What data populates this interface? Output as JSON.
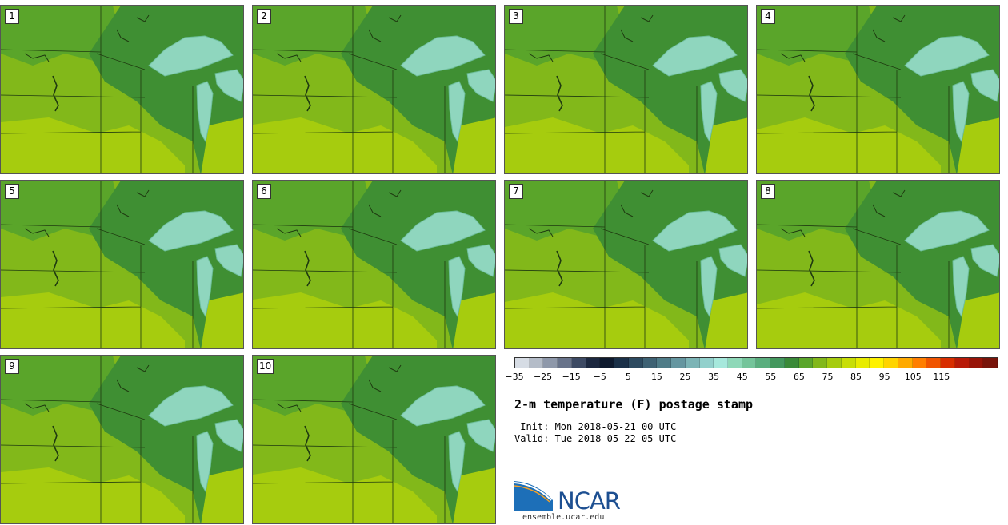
{
  "panels": [
    {
      "label": "1"
    },
    {
      "label": "2"
    },
    {
      "label": "3"
    },
    {
      "label": "4"
    },
    {
      "label": "5"
    },
    {
      "label": "6"
    },
    {
      "label": "7"
    },
    {
      "label": "8"
    },
    {
      "label": "9"
    },
    {
      "label": "10"
    }
  ],
  "map_colors": {
    "cool": "#3f8f33",
    "mid": "#5aa52a",
    "warm": "#82b81a",
    "hot": "#a6cc0e",
    "lake": "#8fd6be",
    "lake_edge": "#6fc09e",
    "border": "#1f3a10"
  },
  "colorbar": {
    "colors": [
      "#d6dce4",
      "#b4bcc8",
      "#8e98aa",
      "#68738a",
      "#3d4a64",
      "#1c2840",
      "#0e1a2e",
      "#1a3048",
      "#2d4a60",
      "#3e6274",
      "#4f7c88",
      "#6596a0",
      "#7cb4b6",
      "#92d0cc",
      "#a6e8dc",
      "#8ed8b8",
      "#74c49a",
      "#5aae7e",
      "#44985e",
      "#3a8a38",
      "#5aa52a",
      "#82b81a",
      "#a6cc0e",
      "#c8de06",
      "#e8ec00",
      "#fff200",
      "#ffd400",
      "#ffaa00",
      "#ff7e00",
      "#f05400",
      "#d82e00",
      "#b81a08",
      "#981408",
      "#78140a"
    ],
    "ticks": [
      "−35",
      "−25",
      "−15",
      "−5",
      "5",
      "15",
      "25",
      "35",
      "45",
      "55",
      "65",
      "75",
      "85",
      "95",
      "105",
      "115"
    ]
  },
  "title": "2-m temperature (F) postage stamp",
  "init": " Init: Mon 2018-05-21 00 UTC",
  "valid": "Valid: Tue 2018-05-22 05 UTC",
  "logo": {
    "text": "NCAR",
    "url": "ensemble.ucar.edu",
    "blue": "#1d6fb8",
    "dark": "#1d4f91"
  }
}
